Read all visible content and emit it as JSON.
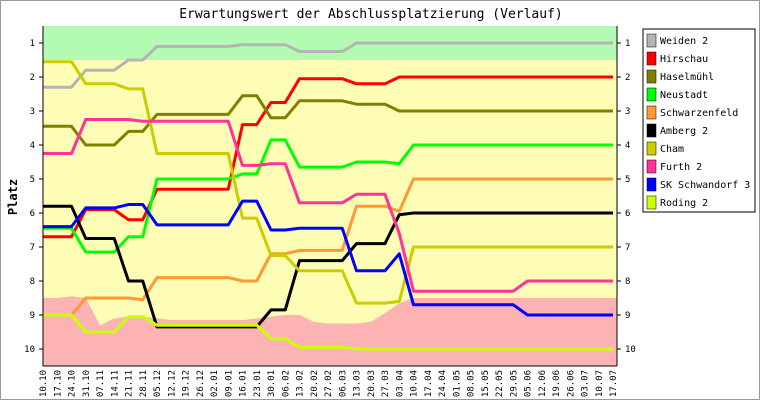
{
  "chart_data": {
    "type": "line",
    "title": "Erwartungswert der Abschlussplatzierung (Verlauf)",
    "ylabel": "Platz",
    "xlabel": "",
    "ylim": [
      1,
      10
    ],
    "y_inverted": true,
    "yticks": [
      "1",
      "2",
      "3",
      "4",
      "5",
      "6",
      "7",
      "8",
      "9",
      "10"
    ],
    "legend_position": "right",
    "categories": [
      "10.10",
      "17.10",
      "24.10",
      "31.10",
      "07.11",
      "14.11",
      "21.11",
      "28.11",
      "05.12",
      "12.12",
      "19.12",
      "26.12",
      "02.01",
      "09.01",
      "16.01",
      "23.01",
      "30.01",
      "06.02",
      "13.02",
      "20.02",
      "27.02",
      "06.03",
      "13.03",
      "20.03",
      "27.03",
      "03.04",
      "10.04",
      "17.04",
      "24.04",
      "01.05",
      "08.05",
      "15.05",
      "22.05",
      "29.05",
      "05.06",
      "12.06",
      "19.06",
      "26.06",
      "03.07",
      "10.07",
      "17.07"
    ],
    "zones": {
      "promotion_until": 1.5,
      "promotion_color": "#b3fbb3",
      "middle_color": "#fefdb5",
      "relegation_color": "#fdb3b3",
      "relegation_boundary": [
        8.5,
        8.5,
        8.45,
        8.5,
        9.3,
        9.1,
        9.05,
        9.05,
        9.1,
        9.15,
        9.15,
        9.15,
        9.15,
        9.15,
        9.15,
        9.1,
        9.05,
        9.0,
        9.0,
        9.2,
        9.25,
        9.25,
        9.25,
        9.2,
        8.95,
        8.65,
        8.5,
        8.5,
        8.5,
        8.5,
        8.5,
        8.5,
        8.5,
        8.5,
        8.5,
        8.5,
        8.5,
        8.5,
        8.5,
        8.5,
        8.5
      ]
    },
    "series": [
      {
        "name": "Weiden 2",
        "color": "#b4b4b4",
        "values": [
          2.3,
          2.3,
          2.3,
          1.8,
          1.8,
          1.8,
          1.5,
          1.5,
          1.1,
          1.1,
          1.1,
          1.1,
          1.1,
          1.1,
          1.05,
          1.05,
          1.05,
          1.05,
          1.25,
          1.25,
          1.25,
          1.25,
          1,
          1,
          1,
          1,
          1,
          1,
          1,
          1,
          1,
          1,
          1,
          1,
          1,
          1,
          1,
          1,
          1,
          1,
          1
        ]
      },
      {
        "name": "Hirschau",
        "color": "#ff0000",
        "values": [
          6.7,
          6.7,
          6.7,
          5.9,
          5.9,
          5.9,
          6.2,
          6.2,
          5.3,
          5.3,
          5.3,
          5.3,
          5.3,
          5.3,
          3.4,
          3.4,
          2.75,
          2.75,
          2.05,
          2.05,
          2.05,
          2.05,
          2.2,
          2.2,
          2.2,
          2,
          2,
          2,
          2,
          2,
          2,
          2,
          2,
          2,
          2,
          2,
          2,
          2,
          2,
          2,
          2
        ]
      },
      {
        "name": "Haselmühl",
        "color": "#808000",
        "values": [
          3.45,
          3.45,
          3.45,
          4,
          4,
          4,
          3.6,
          3.6,
          3.1,
          3.1,
          3.1,
          3.1,
          3.1,
          3.1,
          2.55,
          2.55,
          3.2,
          3.2,
          2.7,
          2.7,
          2.7,
          2.7,
          2.8,
          2.8,
          2.8,
          3,
          3,
          3,
          3,
          3,
          3,
          3,
          3,
          3,
          3,
          3,
          3,
          3,
          3,
          3,
          3
        ]
      },
      {
        "name": "Neustadt",
        "color": "#00ff00",
        "values": [
          6.45,
          6.45,
          6.45,
          7.15,
          7.15,
          7.15,
          6.7,
          6.7,
          5,
          5,
          5,
          5,
          5,
          5,
          4.85,
          4.85,
          3.85,
          3.85,
          4.65,
          4.65,
          4.65,
          4.65,
          4.5,
          4.5,
          4.5,
          4.55,
          4,
          4,
          4,
          4,
          4,
          4,
          4,
          4,
          4,
          4,
          4,
          4,
          4,
          4,
          4
        ]
      },
      {
        "name": "Schwarzenfeld",
        "color": "#ff9933",
        "values": [
          9,
          9,
          9,
          8.5,
          8.5,
          8.5,
          8.5,
          8.55,
          7.9,
          7.9,
          7.9,
          7.9,
          7.9,
          7.9,
          8,
          8,
          7.2,
          7.2,
          7.1,
          7.1,
          7.1,
          7.1,
          5.8,
          5.8,
          5.8,
          5.95,
          5,
          5,
          5,
          5,
          5,
          5,
          5,
          5,
          5,
          5,
          5,
          5,
          5,
          5,
          5
        ]
      },
      {
        "name": "Amberg 2",
        "color": "#000000",
        "values": [
          5.8,
          5.8,
          5.8,
          6.75,
          6.75,
          6.75,
          8,
          8,
          9.35,
          9.35,
          9.35,
          9.35,
          9.35,
          9.35,
          9.35,
          9.35,
          8.85,
          8.85,
          7.4,
          7.4,
          7.4,
          7.4,
          6.9,
          6.9,
          6.9,
          6.05,
          6,
          6,
          6,
          6,
          6,
          6,
          6,
          6,
          6,
          6,
          6,
          6,
          6,
          6,
          6
        ]
      },
      {
        "name": "Cham",
        "color": "#cccc00",
        "values": [
          1.55,
          1.55,
          1.55,
          2.2,
          2.2,
          2.2,
          2.35,
          2.35,
          4.25,
          4.25,
          4.25,
          4.25,
          4.25,
          4.25,
          6.15,
          6.15,
          7.25,
          7.25,
          7.7,
          7.7,
          7.7,
          7.7,
          8.65,
          8.65,
          8.65,
          8.6,
          7,
          7,
          7,
          7,
          7,
          7,
          7,
          7,
          7,
          7,
          7,
          7,
          7,
          7,
          7
        ]
      },
      {
        "name": "Furth 2",
        "color": "#ff3399",
        "values": [
          4.25,
          4.25,
          4.25,
          3.25,
          3.25,
          3.25,
          3.25,
          3.3,
          3.3,
          3.3,
          3.3,
          3.3,
          3.3,
          3.3,
          4.6,
          4.6,
          4.55,
          4.55,
          5.7,
          5.7,
          5.7,
          5.7,
          5.45,
          5.45,
          5.45,
          6.6,
          8.3,
          8.3,
          8.3,
          8.3,
          8.3,
          8.3,
          8.3,
          8.3,
          8,
          8,
          8,
          8,
          8,
          8,
          8
        ]
      },
      {
        "name": "SK Schwandorf 3",
        "color": "#0000ff",
        "values": [
          6.4,
          6.4,
          6.4,
          5.85,
          5.85,
          5.85,
          5.75,
          5.75,
          6.35,
          6.35,
          6.35,
          6.35,
          6.35,
          6.35,
          5.65,
          5.65,
          6.5,
          6.5,
          6.45,
          6.45,
          6.45,
          6.45,
          7.7,
          7.7,
          7.7,
          7.2,
          8.7,
          8.7,
          8.7,
          8.7,
          8.7,
          8.7,
          8.7,
          8.7,
          9,
          9,
          9,
          9,
          9,
          9,
          9
        ]
      },
      {
        "name": "Roding 2",
        "color": "#ccff00",
        "values": [
          9,
          9,
          9,
          9.5,
          9.5,
          9.5,
          9.05,
          9.05,
          9.3,
          9.3,
          9.3,
          9.3,
          9.3,
          9.3,
          9.3,
          9.3,
          9.7,
          9.7,
          9.95,
          9.95,
          9.95,
          9.95,
          10,
          10,
          10,
          10,
          10,
          10,
          10,
          10,
          10,
          10,
          10,
          10,
          10,
          10,
          10,
          10,
          10,
          10,
          10
        ]
      }
    ]
  }
}
